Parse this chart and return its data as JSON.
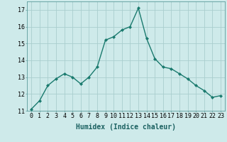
{
  "x": [
    0,
    1,
    2,
    3,
    4,
    5,
    6,
    7,
    8,
    9,
    10,
    11,
    12,
    13,
    14,
    15,
    16,
    17,
    18,
    19,
    20,
    21,
    22,
    23
  ],
  "y": [
    11.1,
    11.6,
    12.5,
    12.9,
    13.2,
    13.0,
    12.6,
    13.0,
    13.6,
    15.2,
    15.4,
    15.8,
    16.0,
    17.1,
    15.3,
    14.1,
    13.6,
    13.5,
    13.2,
    12.9,
    12.5,
    12.2,
    11.8,
    11.9
  ],
  "line_color": "#1a7a6e",
  "marker": "D",
  "marker_size": 2.0,
  "bg_color": "#ceeaea",
  "grid_color": "#aacece",
  "xlabel": "Humidex (Indice chaleur)",
  "ylim": [
    11,
    17.5
  ],
  "xlim": [
    -0.5,
    23.5
  ],
  "yticks": [
    11,
    12,
    13,
    14,
    15,
    16,
    17
  ],
  "xtick_labels": [
    "0",
    "1",
    "2",
    "3",
    "4",
    "5",
    "6",
    "7",
    "8",
    "9",
    "10",
    "11",
    "12",
    "13",
    "14",
    "15",
    "16",
    "17",
    "18",
    "19",
    "20",
    "21",
    "22",
    "23"
  ],
  "xlabel_fontsize": 7,
  "tick_fontsize": 6,
  "line_width": 1.0
}
